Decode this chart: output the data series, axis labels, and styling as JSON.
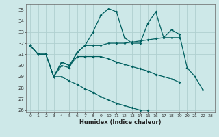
{
  "xlabel": "Humidex (Indice chaleur)",
  "bg_color": "#cde8e8",
  "grid_color": "#b0d0d0",
  "line_color": "#006060",
  "ylim": [
    25.8,
    35.5
  ],
  "xlim": [
    -0.5,
    23.5
  ],
  "yticks": [
    26,
    27,
    28,
    29,
    30,
    31,
    32,
    33,
    34,
    35
  ],
  "xticks": [
    0,
    1,
    2,
    3,
    4,
    5,
    6,
    7,
    8,
    9,
    10,
    11,
    12,
    13,
    14,
    15,
    16,
    17,
    18,
    19,
    20,
    21,
    22,
    23
  ],
  "s1": [
    31.8,
    31.0,
    31.0,
    29.0,
    30.0,
    29.8,
    31.2,
    31.8,
    33.0,
    34.5,
    35.1,
    34.8,
    32.5,
    32.0,
    32.0,
    33.8,
    34.8,
    32.5,
    33.2,
    32.8,
    29.8,
    29.0,
    27.8,
    null
  ],
  "s2": [
    31.8,
    31.0,
    31.0,
    29.0,
    30.3,
    30.0,
    31.2,
    31.8,
    31.8,
    31.8,
    32.0,
    32.0,
    32.0,
    32.1,
    32.2,
    32.3,
    32.4,
    32.5,
    32.5,
    32.5,
    null,
    null,
    null,
    null
  ],
  "s3": [
    31.8,
    31.0,
    31.0,
    29.0,
    30.3,
    30.0,
    30.8,
    30.8,
    30.8,
    30.8,
    30.6,
    30.3,
    30.1,
    29.9,
    29.7,
    29.5,
    29.2,
    29.0,
    28.8,
    28.5,
    null,
    null,
    null,
    null
  ],
  "s4": [
    31.8,
    31.0,
    31.0,
    29.0,
    29.0,
    28.6,
    28.3,
    27.9,
    27.6,
    27.2,
    26.9,
    26.6,
    26.4,
    26.2,
    26.0,
    26.0,
    null,
    null,
    null,
    null,
    null,
    null,
    null,
    null
  ]
}
